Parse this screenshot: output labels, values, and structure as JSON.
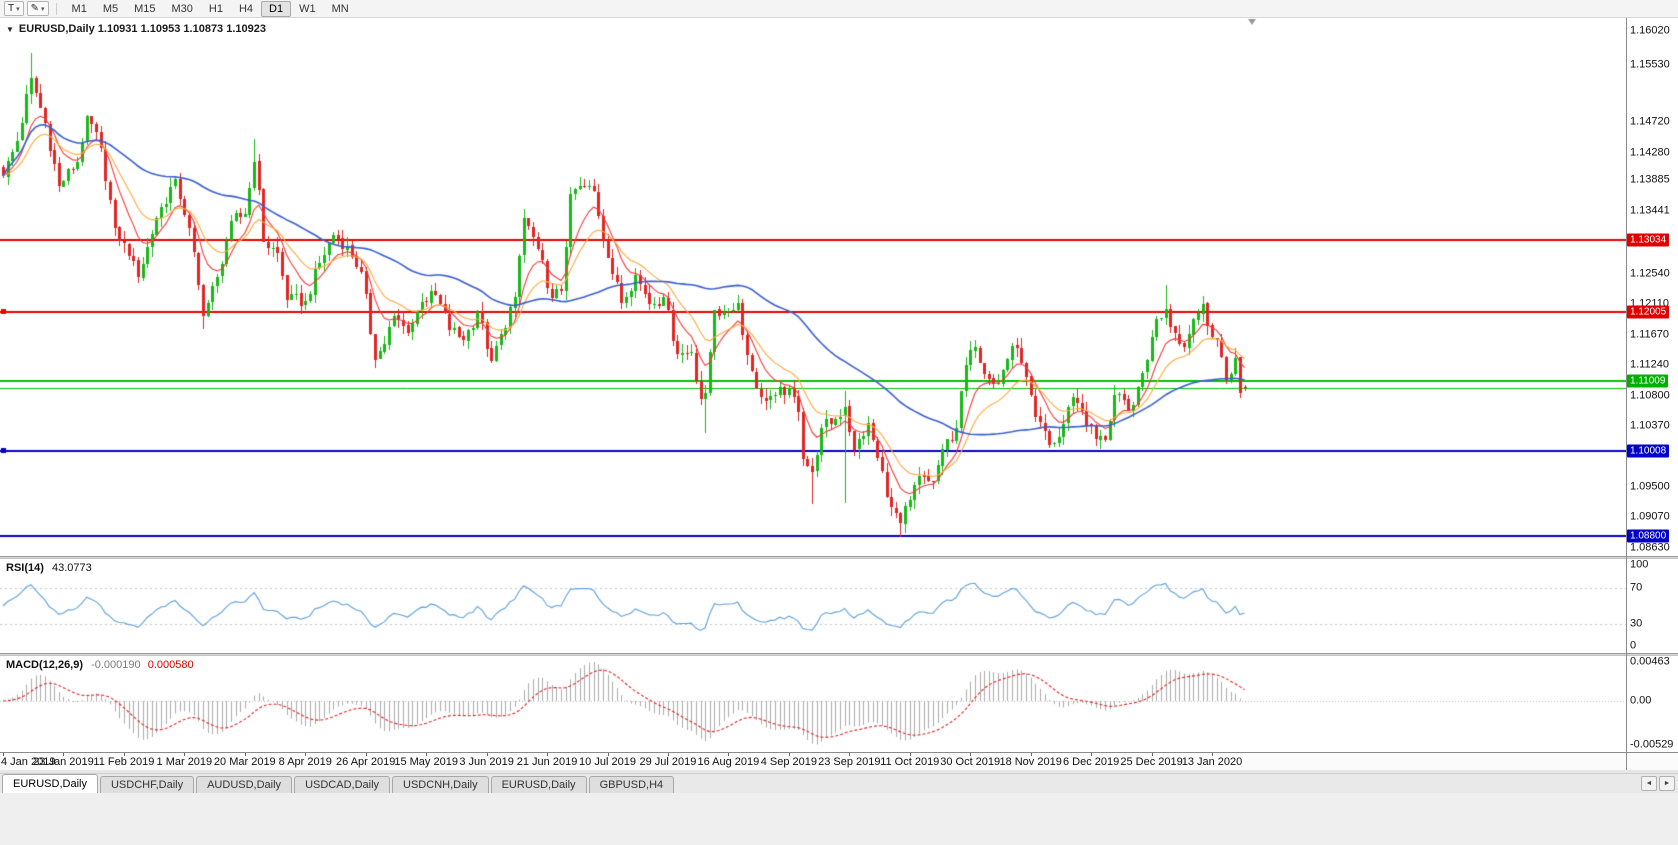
{
  "toolbar": {
    "text_tool_label": "T",
    "drawing_tool_icon": "✎",
    "dropdown_icon": "▾",
    "timeframes": [
      {
        "label": "M1",
        "active": false
      },
      {
        "label": "M5",
        "active": false
      },
      {
        "label": "M15",
        "active": false
      },
      {
        "label": "M30",
        "active": false
      },
      {
        "label": "H1",
        "active": false
      },
      {
        "label": "H4",
        "active": false
      },
      {
        "label": "D1",
        "active": true
      },
      {
        "label": "W1",
        "active": false
      },
      {
        "label": "MN",
        "active": false
      }
    ]
  },
  "main_chart": {
    "dropdown_icon": "▼",
    "ohlc_readout": "EURUSD,Daily 1.10931 1.10953 1.10873 1.10923"
  },
  "bottom_tabs": {
    "scroll_left_icon": "◄",
    "scroll_right_icon": "►",
    "tabs": [
      {
        "label": "EURUSD,Daily",
        "active": true
      },
      {
        "label": "USDCHF,Daily",
        "active": false
      },
      {
        "label": "AUDUSD,Daily",
        "active": false
      },
      {
        "label": "USDCAD,Daily",
        "active": false
      },
      {
        "label": "USDCNH,Daily",
        "active": false
      },
      {
        "label": "EURUSD,Daily",
        "active": false
      },
      {
        "label": "GBPUSD,H4",
        "active": false
      }
    ]
  },
  "chart_data": {
    "type": "candlestick",
    "symbol": "EURUSD",
    "period": "Daily",
    "last_candle": {
      "open": 1.10931,
      "high": 1.10953,
      "low": 1.10873,
      "close": 1.10923
    },
    "num_candles": 268,
    "x_tick_interval_days": 13,
    "x_labels": [
      "4 Jan 2019",
      "23 Jan 2019",
      "11 Feb 2019",
      "1 Mar 2019",
      "20 Mar 2019",
      "8 Apr 2019",
      "26 Apr 2019",
      "15 May 2019",
      "3 Jun 2019",
      "21 Jun 2019",
      "10 Jul 2019",
      "29 Jul 2019",
      "16 Aug 2019",
      "4 Sep 2019",
      "23 Sep 2019",
      "11 Oct 2019",
      "30 Oct 2019",
      "18 Nov 2019",
      "6 Dec 2019",
      "25 Dec 2019",
      "13 Jan 2020"
    ],
    "y_labels": [
      "1.16020",
      "1.15530",
      "1.14720",
      "1.14280",
      "1.13885",
      "1.13441",
      "1.12540",
      "1.12110",
      "1.11670",
      "1.11240",
      "1.10800",
      "1.10370",
      "1.09500",
      "1.09070",
      "1.08630"
    ],
    "y_range": {
      "top": 1.16205,
      "bottom": 1.08513
    },
    "candle_up_color": "#17b817",
    "candle_down_color": "#e02525",
    "price_path_anchors": [
      [
        0,
        1.1395
      ],
      [
        3,
        1.1445
      ],
      [
        6,
        1.1535
      ],
      [
        9,
        1.147
      ],
      [
        12,
        1.138
      ],
      [
        16,
        1.1415
      ],
      [
        18,
        1.148
      ],
      [
        21,
        1.1435
      ],
      [
        24,
        1.132
      ],
      [
        27,
        1.128
      ],
      [
        29,
        1.125
      ],
      [
        33,
        1.1335
      ],
      [
        37,
        1.139
      ],
      [
        40,
        1.132
      ],
      [
        43,
        1.1195
      ],
      [
        46,
        1.125
      ],
      [
        49,
        1.133
      ],
      [
        52,
        1.134
      ],
      [
        54,
        1.1415
      ],
      [
        55,
        1.1375
      ],
      [
        56,
        1.13
      ],
      [
        59,
        1.1285
      ],
      [
        61,
        1.1218
      ],
      [
        65,
        1.1216
      ],
      [
        68,
        1.127
      ],
      [
        71,
        1.131
      ],
      [
        74,
        1.1295
      ],
      [
        77,
        1.1258
      ],
      [
        80,
        1.1132
      ],
      [
        82,
        1.1155
      ],
      [
        84,
        1.1195
      ],
      [
        87,
        1.117
      ],
      [
        90,
        1.1215
      ],
      [
        93,
        1.1225
      ],
      [
        96,
        1.1175
      ],
      [
        99,
        1.116
      ],
      [
        102,
        1.12
      ],
      [
        105,
        1.113
      ],
      [
        107,
        1.1168
      ],
      [
        110,
        1.1222
      ],
      [
        112,
        1.1335
      ],
      [
        115,
        1.129
      ],
      [
        118,
        1.122
      ],
      [
        120,
        1.123
      ],
      [
        122,
        1.1369
      ],
      [
        124,
        1.138
      ],
      [
        127,
        1.1373
      ],
      [
        130,
        1.1278
      ],
      [
        133,
        1.1213
      ],
      [
        136,
        1.1253
      ],
      [
        139,
        1.1212
      ],
      [
        142,
        1.1221
      ],
      [
        145,
        1.114
      ],
      [
        148,
        1.1143
      ],
      [
        150,
        1.1076
      ],
      [
        151,
        1.1085
      ],
      [
        153,
        1.1203
      ],
      [
        155,
        1.12
      ],
      [
        158,
        1.1213
      ],
      [
        160,
        1.1138
      ],
      [
        163,
        1.1078
      ],
      [
        166,
        1.1081
      ],
      [
        169,
        1.1092
      ],
      [
        171,
        1.1057
      ],
      [
        172,
        1.099
      ],
      [
        174,
        1.0972
      ],
      [
        176,
        1.1035
      ],
      [
        179,
        1.1047
      ],
      [
        181,
        1.1064
      ],
      [
        183,
        1.1003
      ],
      [
        186,
        1.1041
      ],
      [
        188,
        1.0992
      ],
      [
        191,
        1.0921
      ],
      [
        193,
        1.0899
      ],
      [
        195,
        1.0932
      ],
      [
        197,
        1.0966
      ],
      [
        200,
        1.0957
      ],
      [
        202,
        1.1004
      ],
      [
        205,
        1.1034
      ],
      [
        207,
        1.1124
      ],
      [
        209,
        1.115
      ],
      [
        212,
        1.1105
      ],
      [
        214,
        1.1099
      ],
      [
        217,
        1.1152
      ],
      [
        219,
        1.1127
      ],
      [
        222,
        1.105
      ],
      [
        225,
        1.101
      ],
      [
        227,
        1.1021
      ],
      [
        230,
        1.1078
      ],
      [
        232,
        1.1058
      ],
      [
        235,
        1.1018
      ],
      [
        237,
        1.1017
      ],
      [
        239,
        1.1082
      ],
      [
        242,
        1.1059
      ],
      [
        244,
        1.1093
      ],
      [
        246,
        1.1131
      ],
      [
        248,
        1.119
      ],
      [
        250,
        1.1205
      ],
      [
        252,
        1.117
      ],
      [
        254,
        1.115
      ],
      [
        256,
        1.119
      ],
      [
        258,
        1.1212
      ],
      [
        259,
        1.118
      ],
      [
        261,
        1.116
      ],
      [
        263,
        1.1103
      ],
      [
        265,
        1.1135
      ],
      [
        266,
        1.1085
      ],
      [
        267,
        1.10923
      ]
    ],
    "wick_extremes": [
      {
        "day": 6,
        "high": 1.157
      },
      {
        "day": 43,
        "low": 1.1176
      },
      {
        "day": 54,
        "high": 1.1448
      },
      {
        "day": 151,
        "low": 1.1027
      },
      {
        "day": 174,
        "low": 1.0926
      },
      {
        "day": 181,
        "low": 1.0927,
        "high": 1.1087
      },
      {
        "day": 193,
        "low": 1.0879
      },
      {
        "day": 250,
        "high": 1.1239
      }
    ],
    "moving_averages": [
      {
        "name": "fast-ema",
        "period": 8,
        "color": "#f23a3a"
      },
      {
        "name": "mid-ema",
        "period": 16,
        "color": "#ffa93d"
      },
      {
        "name": "slow-sma",
        "period": 50,
        "color": "#3a5fcd"
      }
    ],
    "horizontal_lines": [
      {
        "price": 1.13034,
        "color": "#e80000",
        "width": 2,
        "tag": "1.13034",
        "tag_color": "#e00000"
      },
      {
        "price": 1.12005,
        "color": "#e80000",
        "width": 2,
        "tag": "1.12005",
        "tag_color": "#e00000",
        "left_marker": true
      },
      {
        "price": 1.1101,
        "color": "#00c000",
        "width": 2,
        "tag": "1.11009",
        "tag_color": "#00b000"
      },
      {
        "price": 1.1092,
        "color": "#00c000",
        "width": 1
      },
      {
        "price": 1.10008,
        "color": "#0000c8",
        "width": 2,
        "tag": "1.10008",
        "tag_color": "#0000c8",
        "left_marker": true
      },
      {
        "price": 1.088,
        "color": "#0000c8",
        "width": 2,
        "tag": "1.08800",
        "tag_color": "#0000c8"
      }
    ],
    "indicators": [
      {
        "name": "RSI",
        "label_name": "RSI(14)",
        "label_value": "43.0773",
        "line_color": "#5fa0dc",
        "levels": [
          70,
          30
        ],
        "range": [
          0,
          100
        ],
        "scale_labels": [
          {
            "value": 100,
            "text": "100"
          },
          {
            "value": 70,
            "text": "70"
          },
          {
            "value": 30,
            "text": "30"
          },
          {
            "value": 0,
            "text": "0"
          }
        ]
      },
      {
        "name": "MACD",
        "label_name": "MACD(12,26,9)",
        "main_value": "-0.000190",
        "signal_value": "0.000580",
        "params": {
          "fast": 12,
          "slow": 26,
          "signal": 9
        },
        "histogram_color": "#ababab",
        "signal_color": "#e02525",
        "range": [
          -0.00529,
          0.00463
        ],
        "scale_labels": [
          {
            "value": 0.00463,
            "text": "0.00463"
          },
          {
            "value": 0,
            "text": "0.00"
          },
          {
            "value": -0.00529,
            "text": "-0.00529"
          }
        ]
      }
    ]
  }
}
